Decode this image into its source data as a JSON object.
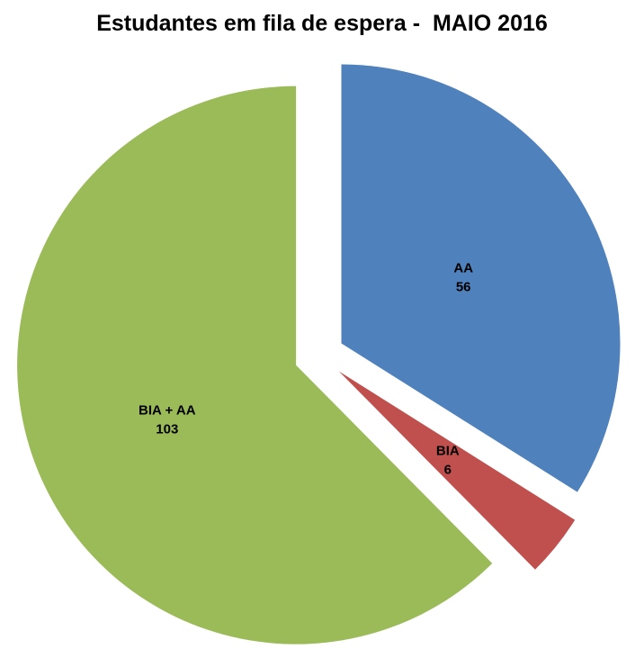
{
  "chart_data": {
    "type": "pie",
    "title": "Estudantes em fila de espera -  MAIO 2016",
    "slices": [
      {
        "label": "AA",
        "value": 56,
        "color": "#4F81BD"
      },
      {
        "label": "BIA",
        "value": 6,
        "color": "#C0504D"
      },
      {
        "label": "BIA + AA",
        "value": 103,
        "color": "#9BBB59"
      }
    ],
    "total": 165,
    "start_angle_deg": 0,
    "direction": "clockwise",
    "exploded": true,
    "legend": "none",
    "background": "#ffffff",
    "label_color": "#000000",
    "data_labels": "category name and value inside slice"
  }
}
